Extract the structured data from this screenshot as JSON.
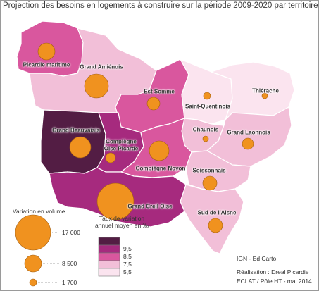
{
  "title": "Projection des besoins en logements à construire sur la période 2009-2020 par territoire",
  "territories": [
    {
      "name": "Picardie maritime",
      "color": "#d9579e"
    },
    {
      "name": "Grand Amiénois",
      "color": "#f2bfd8"
    },
    {
      "name": "Est Somme",
      "color": "#d9579e"
    },
    {
      "name": "Saint-Quentinois",
      "color": "#fbe4ef"
    },
    {
      "name": "Thiérache",
      "color": "#fbe4ef"
    },
    {
      "name": "Chaunois",
      "color": "#f2bfd8"
    },
    {
      "name": "Grand Laonnois",
      "color": "#f2bfd8"
    },
    {
      "name": "Grand Beauvaisis",
      "color": "#531d44"
    },
    {
      "name": "Compiègne Oise Picarde",
      "color": "#a62a7e"
    },
    {
      "name": "Compiègne Noyon",
      "color": "#d9579e"
    },
    {
      "name": "Soissonnais",
      "color": "#f2bfd8"
    },
    {
      "name": "Sud de l'Aisne",
      "color": "#f2bfd8"
    },
    {
      "name": "Grand Creil Oise",
      "color": "#a62a7e"
    }
  ],
  "labels": {
    "picardie_maritime": "Picardie maritime",
    "grand_amienois": "Grand Amiénois",
    "est_somme": "Est Somme",
    "saint_quentinois": "Saint-Quentinois",
    "thierache": "Thiérache",
    "chaunois": "Chaunois",
    "grand_laonnois": "Grand Laonnois",
    "grand_beauvaisis": "Grand Beauvaisis",
    "compiegne_oise_1": "Compiègne",
    "compiegne_oise_2": "Oise Picarde",
    "compiegne_noyon": "Compiègne Noyon",
    "soissonnais": "Soissonnais",
    "sud_aisne": "Sud de l'Aisne",
    "grand_creil": "Grand Creil Oise"
  },
  "legend_volume": {
    "title": "Variation en volume",
    "values": [
      "17 000",
      "8 500",
      "1 700"
    ],
    "circle_color": "#f0921f"
  },
  "legend_rate": {
    "title_line1": "Taux de variation",
    "title_line2": "annuel moyen en ‰",
    "classes": [
      {
        "value": "9,5",
        "color": "#531d44"
      },
      {
        "value": "8,5",
        "color": "#a62a7e"
      },
      {
        "value": "7,5",
        "color": "#d9579e"
      },
      {
        "value": "5,5",
        "color": "#f2bfd8"
      },
      {
        "value": "",
        "color": "#fbe4ef"
      }
    ]
  },
  "source": {
    "ign": "IGN - Ed Carto",
    "realisation": "Réalisation : Dreal Picardie",
    "eclat": "ECLAT / Pôle HT - mai 2014"
  }
}
